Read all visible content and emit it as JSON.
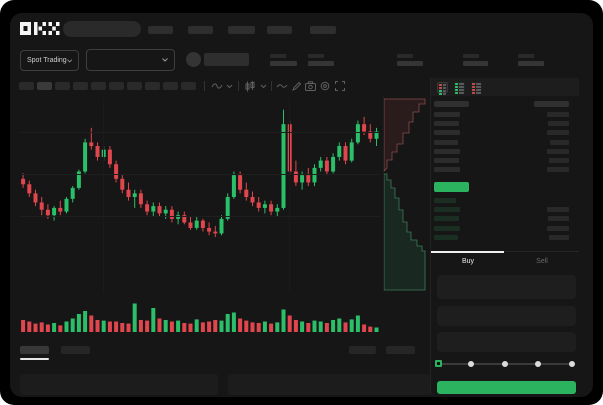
{
  "app": {
    "logo_text": "OKX"
  },
  "colors": {
    "green": "#2bbf6a",
    "red": "#e0464d",
    "button_green": "#2bb35f",
    "depth_ask_fill": "rgba(190,70,70,0.12)",
    "depth_ask_line": "#8a4a4a",
    "depth_bid_fill": "rgba(50,160,110,0.14)",
    "depth_bid_line": "#3c7a5e"
  },
  "subheader": {
    "market_selector": "Spot Trading"
  },
  "order_panel": {
    "buy_label": "Buy",
    "sell_label": "Sell",
    "slider_selected_index": 0,
    "slider_stop_count": 5
  },
  "chart_data": {
    "type": "candlestick",
    "title": "",
    "price_scale": [
      0,
      100
    ],
    "grid": true,
    "candles": [
      [
        60,
        63,
        55,
        57
      ],
      [
        57,
        59,
        50,
        52
      ],
      [
        52,
        54,
        45,
        47
      ],
      [
        47,
        50,
        40,
        43
      ],
      [
        43,
        46,
        38,
        40
      ],
      [
        40,
        45,
        37,
        44
      ],
      [
        44,
        48,
        40,
        42
      ],
      [
        42,
        50,
        41,
        49
      ],
      [
        49,
        56,
        47,
        55
      ],
      [
        55,
        65,
        54,
        64
      ],
      [
        64,
        82,
        63,
        80
      ],
      [
        80,
        88,
        76,
        78
      ],
      [
        78,
        80,
        70,
        72
      ],
      [
        72,
        78,
        70,
        76
      ],
      [
        76,
        78,
        66,
        68
      ],
      [
        68,
        70,
        58,
        60
      ],
      [
        60,
        62,
        52,
        54
      ],
      [
        54,
        58,
        48,
        50
      ],
      [
        50,
        54,
        44,
        52
      ],
      [
        52,
        54,
        44,
        46
      ],
      [
        46,
        48,
        40,
        42
      ],
      [
        42,
        47,
        39,
        45
      ],
      [
        45,
        47,
        39,
        41
      ],
      [
        41,
        45,
        38,
        43
      ],
      [
        43,
        45,
        36,
        38
      ],
      [
        38,
        42,
        35,
        40
      ],
      [
        40,
        42,
        35,
        36
      ],
      [
        36,
        39,
        32,
        33
      ],
      [
        33,
        39,
        32,
        37
      ],
      [
        37,
        38,
        31,
        33
      ],
      [
        33,
        36,
        29,
        31
      ],
      [
        31,
        34,
        28,
        30
      ],
      [
        30,
        40,
        29,
        38
      ],
      [
        38,
        52,
        37,
        50
      ],
      [
        50,
        64,
        49,
        62
      ],
      [
        62,
        64,
        52,
        54
      ],
      [
        54,
        58,
        48,
        50
      ],
      [
        50,
        53,
        45,
        47
      ],
      [
        47,
        50,
        42,
        44
      ],
      [
        44,
        48,
        41,
        46
      ],
      [
        46,
        48,
        40,
        42
      ],
      [
        42,
        46,
        39,
        44
      ],
      [
        44,
        98,
        43,
        90
      ],
      [
        90,
        92,
        62,
        64
      ],
      [
        64,
        70,
        56,
        58
      ],
      [
        58,
        64,
        54,
        62
      ],
      [
        62,
        66,
        56,
        58
      ],
      [
        58,
        68,
        56,
        66
      ],
      [
        66,
        72,
        64,
        70
      ],
      [
        70,
        72,
        62,
        64
      ],
      [
        64,
        74,
        63,
        72
      ],
      [
        72,
        80,
        70,
        78
      ],
      [
        78,
        80,
        68,
        70
      ],
      [
        70,
        82,
        69,
        80
      ],
      [
        80,
        92,
        79,
        90
      ],
      [
        90,
        94,
        84,
        86
      ],
      [
        86,
        90,
        80,
        82
      ],
      [
        82,
        88,
        78,
        86
      ]
    ],
    "volumes": [
      40,
      35,
      28,
      32,
      25,
      30,
      22,
      35,
      45,
      60,
      70,
      55,
      40,
      38,
      35,
      35,
      30,
      28,
      95,
      40,
      38,
      80,
      45,
      40,
      35,
      38,
      30,
      28,
      42,
      32,
      35,
      40,
      38,
      60,
      65,
      45,
      38,
      32,
      30,
      35,
      28,
      32,
      75,
      55,
      40,
      35,
      30,
      38,
      35,
      30,
      40,
      45,
      32,
      42,
      55,
      25,
      18,
      15
    ],
    "depth": {
      "asks_points": [
        [
          41,
          2
        ],
        [
          41,
          7
        ],
        [
          35,
          7
        ],
        [
          35,
          15
        ],
        [
          29,
          15
        ],
        [
          29,
          25
        ],
        [
          25,
          25
        ],
        [
          25,
          36
        ],
        [
          19,
          36
        ],
        [
          19,
          47
        ],
        [
          13,
          47
        ],
        [
          13,
          55
        ],
        [
          8,
          55
        ],
        [
          8,
          63
        ],
        [
          3,
          63
        ],
        [
          3,
          71
        ],
        [
          0,
          74
        ]
      ],
      "asks_close": [
        [
          0,
          2
        ]
      ],
      "bids_points": [
        [
          0,
          77
        ],
        [
          3,
          77
        ],
        [
          3,
          83
        ],
        [
          7,
          83
        ],
        [
          7,
          91
        ],
        [
          11,
          91
        ],
        [
          11,
          101
        ],
        [
          15,
          101
        ],
        [
          15,
          113
        ],
        [
          19,
          113
        ],
        [
          19,
          125
        ],
        [
          23,
          125
        ],
        [
          23,
          135
        ],
        [
          27,
          135
        ],
        [
          27,
          143
        ],
        [
          33,
          143
        ],
        [
          33,
          149
        ],
        [
          38,
          149
        ],
        [
          38,
          154
        ],
        [
          41,
          154
        ]
      ],
      "bids_close": [
        [
          41,
          193
        ],
        [
          0,
          193
        ]
      ]
    }
  },
  "orderbook": {
    "asks": [
      {
        "l": 26,
        "r": 22
      },
      {
        "l": 25,
        "r": 21
      },
      {
        "l": 26,
        "r": 22
      },
      {
        "l": 24,
        "r": 19
      },
      {
        "l": 26,
        "r": 22
      },
      {
        "l": 25,
        "r": 20
      },
      {
        "l": 26,
        "r": 22
      }
    ],
    "bids": [
      {
        "l": 22,
        "r": 0
      },
      {
        "l": 26,
        "r": 22
      },
      {
        "l": 25,
        "r": 21
      },
      {
        "l": 26,
        "r": 22
      },
      {
        "l": 24,
        "r": 20
      }
    ]
  }
}
